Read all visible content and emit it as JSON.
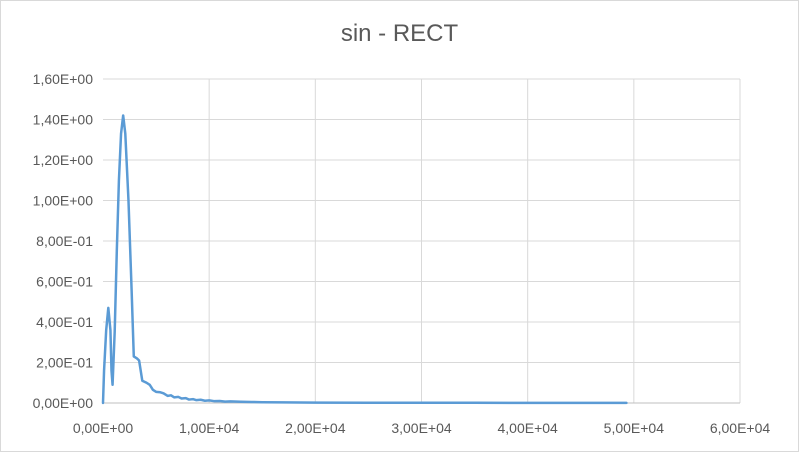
{
  "chart_data": {
    "type": "line",
    "title": "sin - RECT",
    "xlabel": "",
    "ylabel": "",
    "xlim": [
      0,
      60000
    ],
    "ylim": [
      0,
      1.6
    ],
    "x_ticks": [
      0,
      10000,
      20000,
      30000,
      40000,
      50000,
      60000
    ],
    "x_tick_labels": [
      "0,00E+00",
      "1,00E+04",
      "2,00E+04",
      "3,00E+04",
      "4,00E+04",
      "5,00E+04",
      "6,00E+04"
    ],
    "y_ticks": [
      0,
      0.2,
      0.4,
      0.6,
      0.8,
      1.0,
      1.2,
      1.4,
      1.6
    ],
    "y_tick_labels": [
      "0,00E+00",
      "2,00E-01",
      "4,00E-01",
      "6,00E-01",
      "8,00E-01",
      "1,00E+00",
      "1,20E+00",
      "1,40E+00",
      "1,60E+00"
    ],
    "grid": true,
    "legend": "none",
    "series": [
      {
        "color": "#5b9bd5",
        "points": [
          [
            0,
            0.0
          ],
          [
            100,
            0.16
          ],
          [
            300,
            0.36
          ],
          [
            500,
            0.47
          ],
          [
            700,
            0.36
          ],
          [
            800,
            0.16
          ],
          [
            900,
            0.09
          ],
          [
            1100,
            0.35
          ],
          [
            1300,
            0.75
          ],
          [
            1500,
            1.1
          ],
          [
            1700,
            1.33
          ],
          [
            1900,
            1.42
          ],
          [
            2100,
            1.33
          ],
          [
            2400,
            1.0
          ],
          [
            2700,
            0.55
          ],
          [
            2900,
            0.23
          ],
          [
            3200,
            0.22
          ],
          [
            3400,
            0.21
          ],
          [
            3700,
            0.11
          ],
          [
            4100,
            0.1
          ],
          [
            4400,
            0.09
          ],
          [
            4700,
            0.065
          ],
          [
            5000,
            0.055
          ],
          [
            5400,
            0.053
          ],
          [
            5700,
            0.048
          ],
          [
            6100,
            0.035
          ],
          [
            6400,
            0.038
          ],
          [
            6700,
            0.028
          ],
          [
            7100,
            0.03
          ],
          [
            7400,
            0.022
          ],
          [
            7800,
            0.024
          ],
          [
            8100,
            0.017
          ],
          [
            8500,
            0.019
          ],
          [
            8800,
            0.014
          ],
          [
            9200,
            0.016
          ],
          [
            9600,
            0.011
          ],
          [
            10000,
            0.013
          ],
          [
            10500,
            0.009
          ],
          [
            11000,
            0.01
          ],
          [
            11500,
            0.007
          ],
          [
            12000,
            0.008
          ],
          [
            13000,
            0.006
          ],
          [
            14000,
            0.005
          ],
          [
            15000,
            0.004
          ],
          [
            17000,
            0.003
          ],
          [
            20000,
            0.002
          ],
          [
            25000,
            0.0015
          ],
          [
            30000,
            0.001
          ],
          [
            35000,
            0.001
          ],
          [
            40000,
            0.0008
          ],
          [
            45000,
            0.0005
          ],
          [
            49300,
            0.0005
          ]
        ]
      }
    ]
  }
}
